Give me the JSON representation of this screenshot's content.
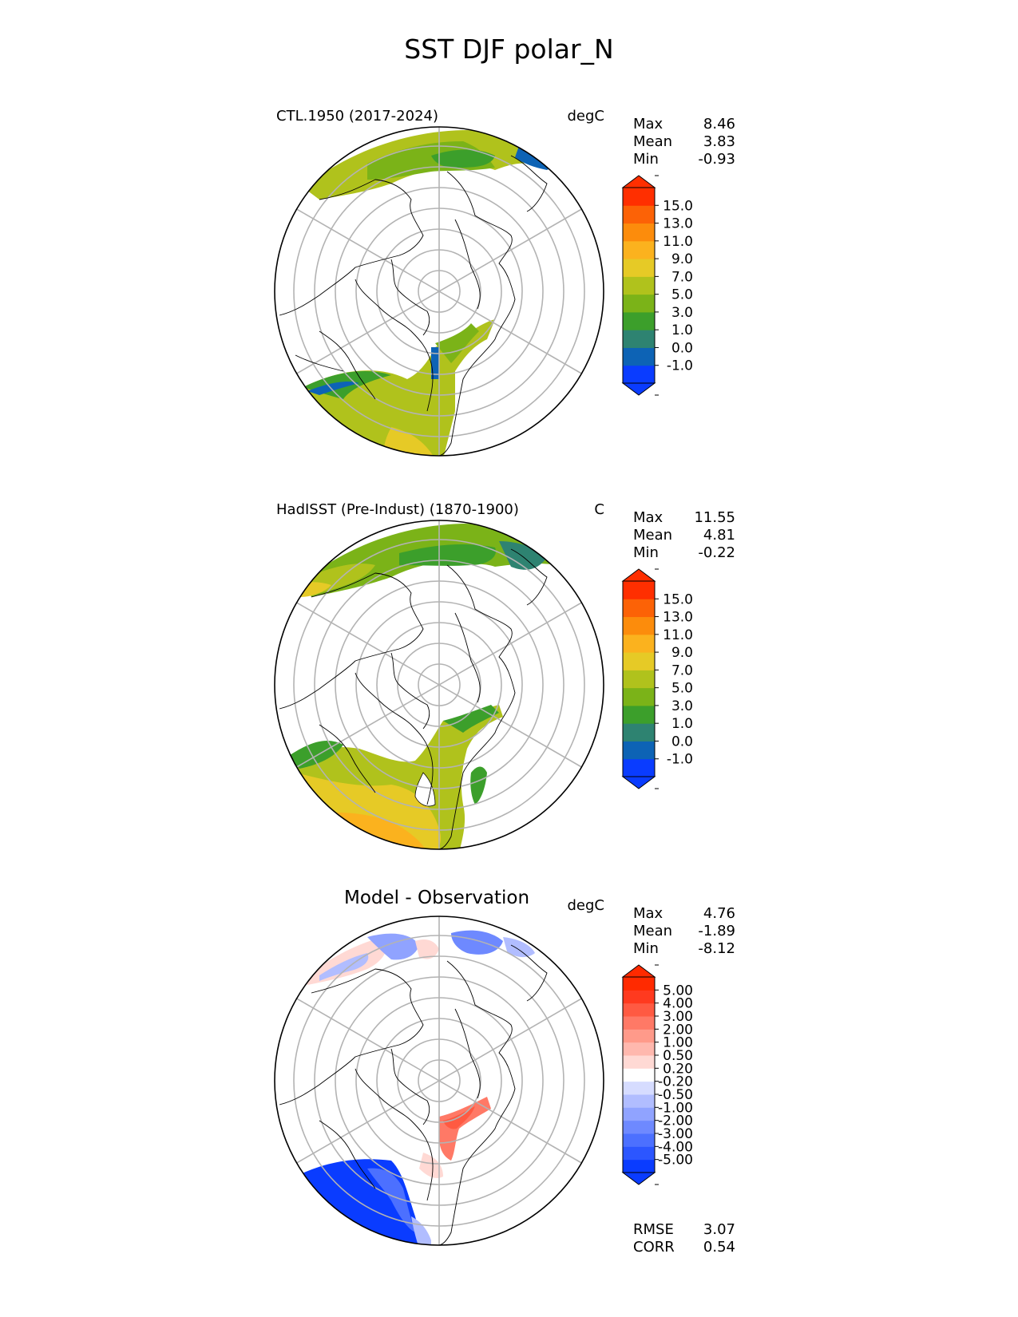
{
  "figure": {
    "title": "SST DJF polar_N"
  },
  "panels": [
    {
      "name": "model",
      "label": "CTL.1950 (2017-2024)",
      "units": "degC",
      "stats": [
        {
          "label": "Max",
          "value": "8.46"
        },
        {
          "label": "Mean",
          "value": "3.83"
        },
        {
          "label": "Min",
          "value": "-0.93"
        }
      ]
    },
    {
      "name": "observation",
      "label": "HadISST (Pre-Indust) (1870-1900)",
      "units": "C",
      "stats": [
        {
          "label": "Max",
          "value": "11.55"
        },
        {
          "label": "Mean",
          "value": "4.81"
        },
        {
          "label": "Min",
          "value": "-0.22"
        }
      ]
    },
    {
      "name": "difference",
      "label": "Model - Observation",
      "units": "degC",
      "stats": [
        {
          "label": "Max",
          "value": "4.76"
        },
        {
          "label": "Mean",
          "value": "-1.89"
        },
        {
          "label": "Min",
          "value": "-8.12"
        }
      ],
      "extra_stats": [
        {
          "label": "RMSE",
          "value": "3.07"
        },
        {
          "label": "CORR",
          "value": "0.54"
        }
      ]
    }
  ],
  "colorbars": {
    "sst": {
      "tick_labels": [
        "-1.0",
        "0.0",
        "1.0",
        "3.0",
        "5.0",
        "7.0",
        "9.0",
        "11.0",
        "13.0",
        "15.0"
      ],
      "colors": [
        "#0a3cff",
        "#0d63b5",
        "#2e8371",
        "#3c9f2b",
        "#7bb318",
        "#b0c21c",
        "#e6ca26",
        "#fbb21e",
        "#fc8c0c",
        "#fc6206",
        "#ff2f00"
      ],
      "under_color": "#0a3cff",
      "over_color": "#ff2f00"
    },
    "diff": {
      "tick_labels": [
        "-5.00",
        "-4.00",
        "-3.00",
        "-2.00",
        "-1.00",
        "-0.50",
        "-0.20",
        "0.20",
        "0.50",
        "1.00",
        "2.00",
        "3.00",
        "4.00",
        "5.00"
      ],
      "colors": [
        "#0a3cff",
        "#2c56ff",
        "#4c70ff",
        "#6e89ff",
        "#90a3ff",
        "#b1bdff",
        "#d6dcff",
        "#ffffff",
        "#ffd9d4",
        "#ffb8ae",
        "#ff9a8a",
        "#ff7966",
        "#ff5a42",
        "#ff3a1f",
        "#ff2a00"
      ],
      "under_color": "#0a3cff",
      "over_color": "#ff2a00"
    }
  },
  "chart_data": [
    {
      "type": "heatmap",
      "title": "CTL.1950 (2017-2024)",
      "projection": "north polar stereographic",
      "variable": "SST DJF",
      "units": "degC",
      "levels": [
        -1.0,
        0.0,
        1.0,
        3.0,
        5.0,
        7.0,
        9.0,
        11.0,
        13.0,
        15.0
      ],
      "summary": {
        "max": 8.46,
        "mean": 3.83,
        "min": -0.93
      }
    },
    {
      "type": "heatmap",
      "title": "HadISST (Pre-Indust) (1870-1900)",
      "projection": "north polar stereographic",
      "variable": "SST DJF",
      "units": "C",
      "levels": [
        -1.0,
        0.0,
        1.0,
        3.0,
        5.0,
        7.0,
        9.0,
        11.0,
        13.0,
        15.0
      ],
      "summary": {
        "max": 11.55,
        "mean": 4.81,
        "min": -0.22
      }
    },
    {
      "type": "heatmap",
      "title": "Model - Observation",
      "projection": "north polar stereographic",
      "variable": "SST DJF difference",
      "units": "degC",
      "levels": [
        -5.0,
        -4.0,
        -3.0,
        -2.0,
        -1.0,
        -0.5,
        -0.2,
        0.2,
        0.5,
        1.0,
        2.0,
        3.0,
        4.0,
        5.0
      ],
      "summary": {
        "max": 4.76,
        "mean": -1.89,
        "min": -8.12,
        "rmse": 3.07,
        "corr": 0.54
      }
    }
  ]
}
